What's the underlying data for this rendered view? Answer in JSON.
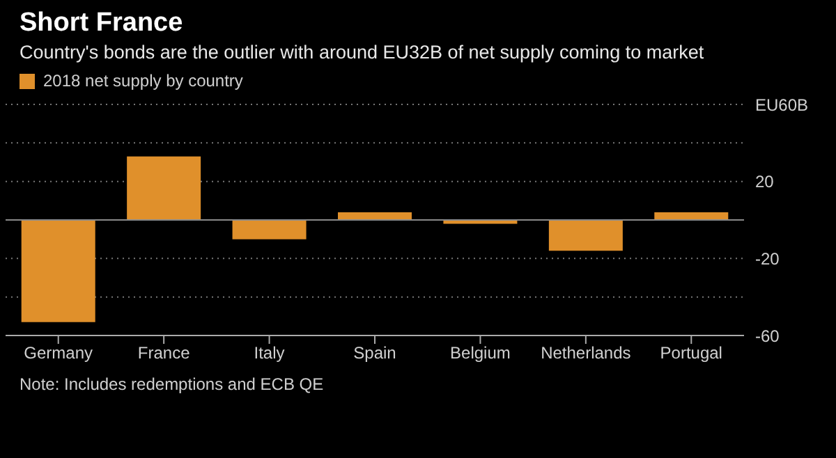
{
  "chart_data": {
    "type": "bar",
    "title": "Short France",
    "subtitle": "Country's bonds are the outlier with around EU32B of net supply coming to market",
    "categories": [
      "Germany",
      "France",
      "Italy",
      "Spain",
      "Belgium",
      "Netherlands",
      "Portugal"
    ],
    "series": [
      {
        "name": "2018 net supply by country",
        "color": "#e0902b",
        "values": [
          -53,
          33,
          -10,
          4,
          -2,
          -16,
          4
        ]
      }
    ],
    "ylim": [
      -60,
      60
    ],
    "yticks": [
      {
        "value": 60,
        "label": "EU60B"
      },
      {
        "value": 40,
        "label": null
      },
      20,
      {
        "value": 0,
        "label": null
      },
      -20,
      {
        "value": -40,
        "label": null
      },
      -60
    ],
    "ref_lines": [
      {
        "axis": "y",
        "value": 0,
        "color": "#8a8a8a"
      }
    ],
    "grid": "y",
    "legend": "top left",
    "annotations": [
      "Note: Includes redemptions and ECB QE"
    ]
  }
}
